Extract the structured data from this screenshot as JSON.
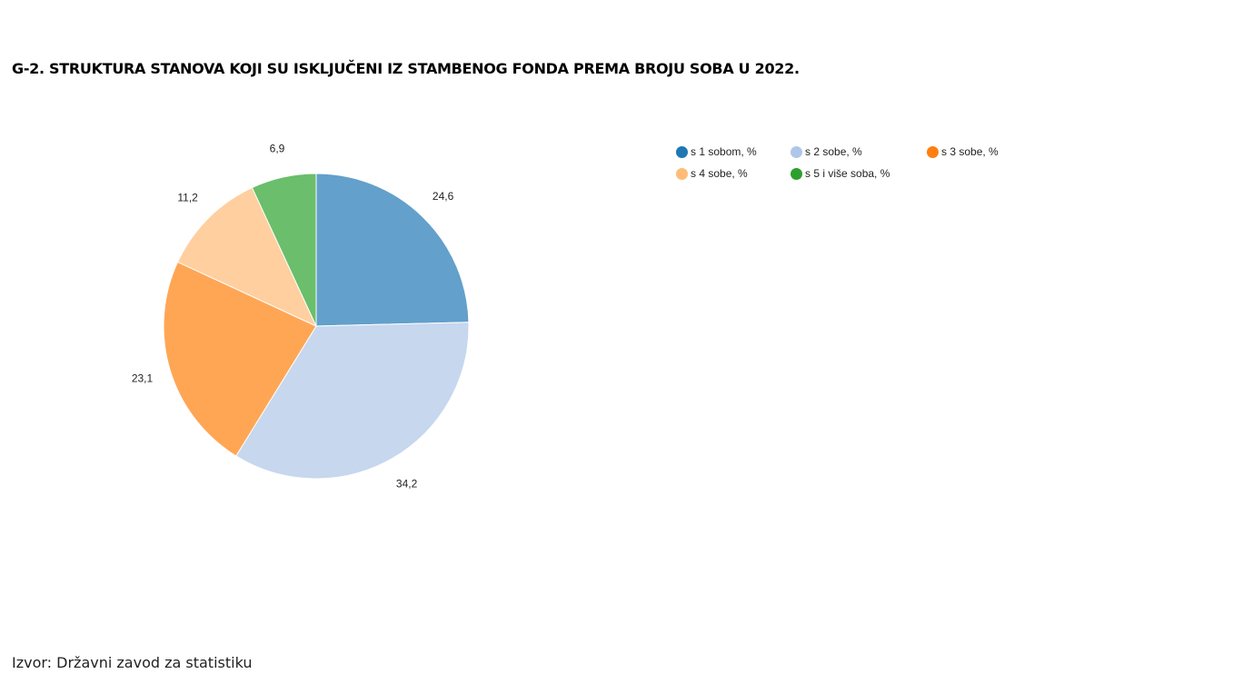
{
  "title": "G-2. STRUKTURA STANOVA KOJI SU ISKLJUČENI IZ STAMBENOG FONDA PREMA BROJU SOBA U 2022.",
  "source": "Izvor: Državni zavod za statistiku",
  "chart_data": {
    "type": "pie",
    "categories": [
      "s 1 sobom, %",
      "s 2 sobe, %",
      "s 3 sobe, %",
      "s 4 sobe, %",
      "s 5 i više soba, %"
    ],
    "values": [
      24.6,
      34.2,
      23.1,
      11.2,
      6.9
    ],
    "value_labels": [
      "24,6",
      "34,2",
      "23,1",
      "11,2",
      "6,9"
    ],
    "slice_colors": [
      "#63a0cb",
      "#c6d7ee",
      "#ffa655",
      "#ffcf9f",
      "#6bbe6b"
    ],
    "legend_colors": [
      "#1f77b4",
      "#aec7e8",
      "#ff7f0e",
      "#ffbb78",
      "#2ca02c"
    ],
    "legend_position": "top-right",
    "start_angle": "12 o'clock, clockwise"
  }
}
